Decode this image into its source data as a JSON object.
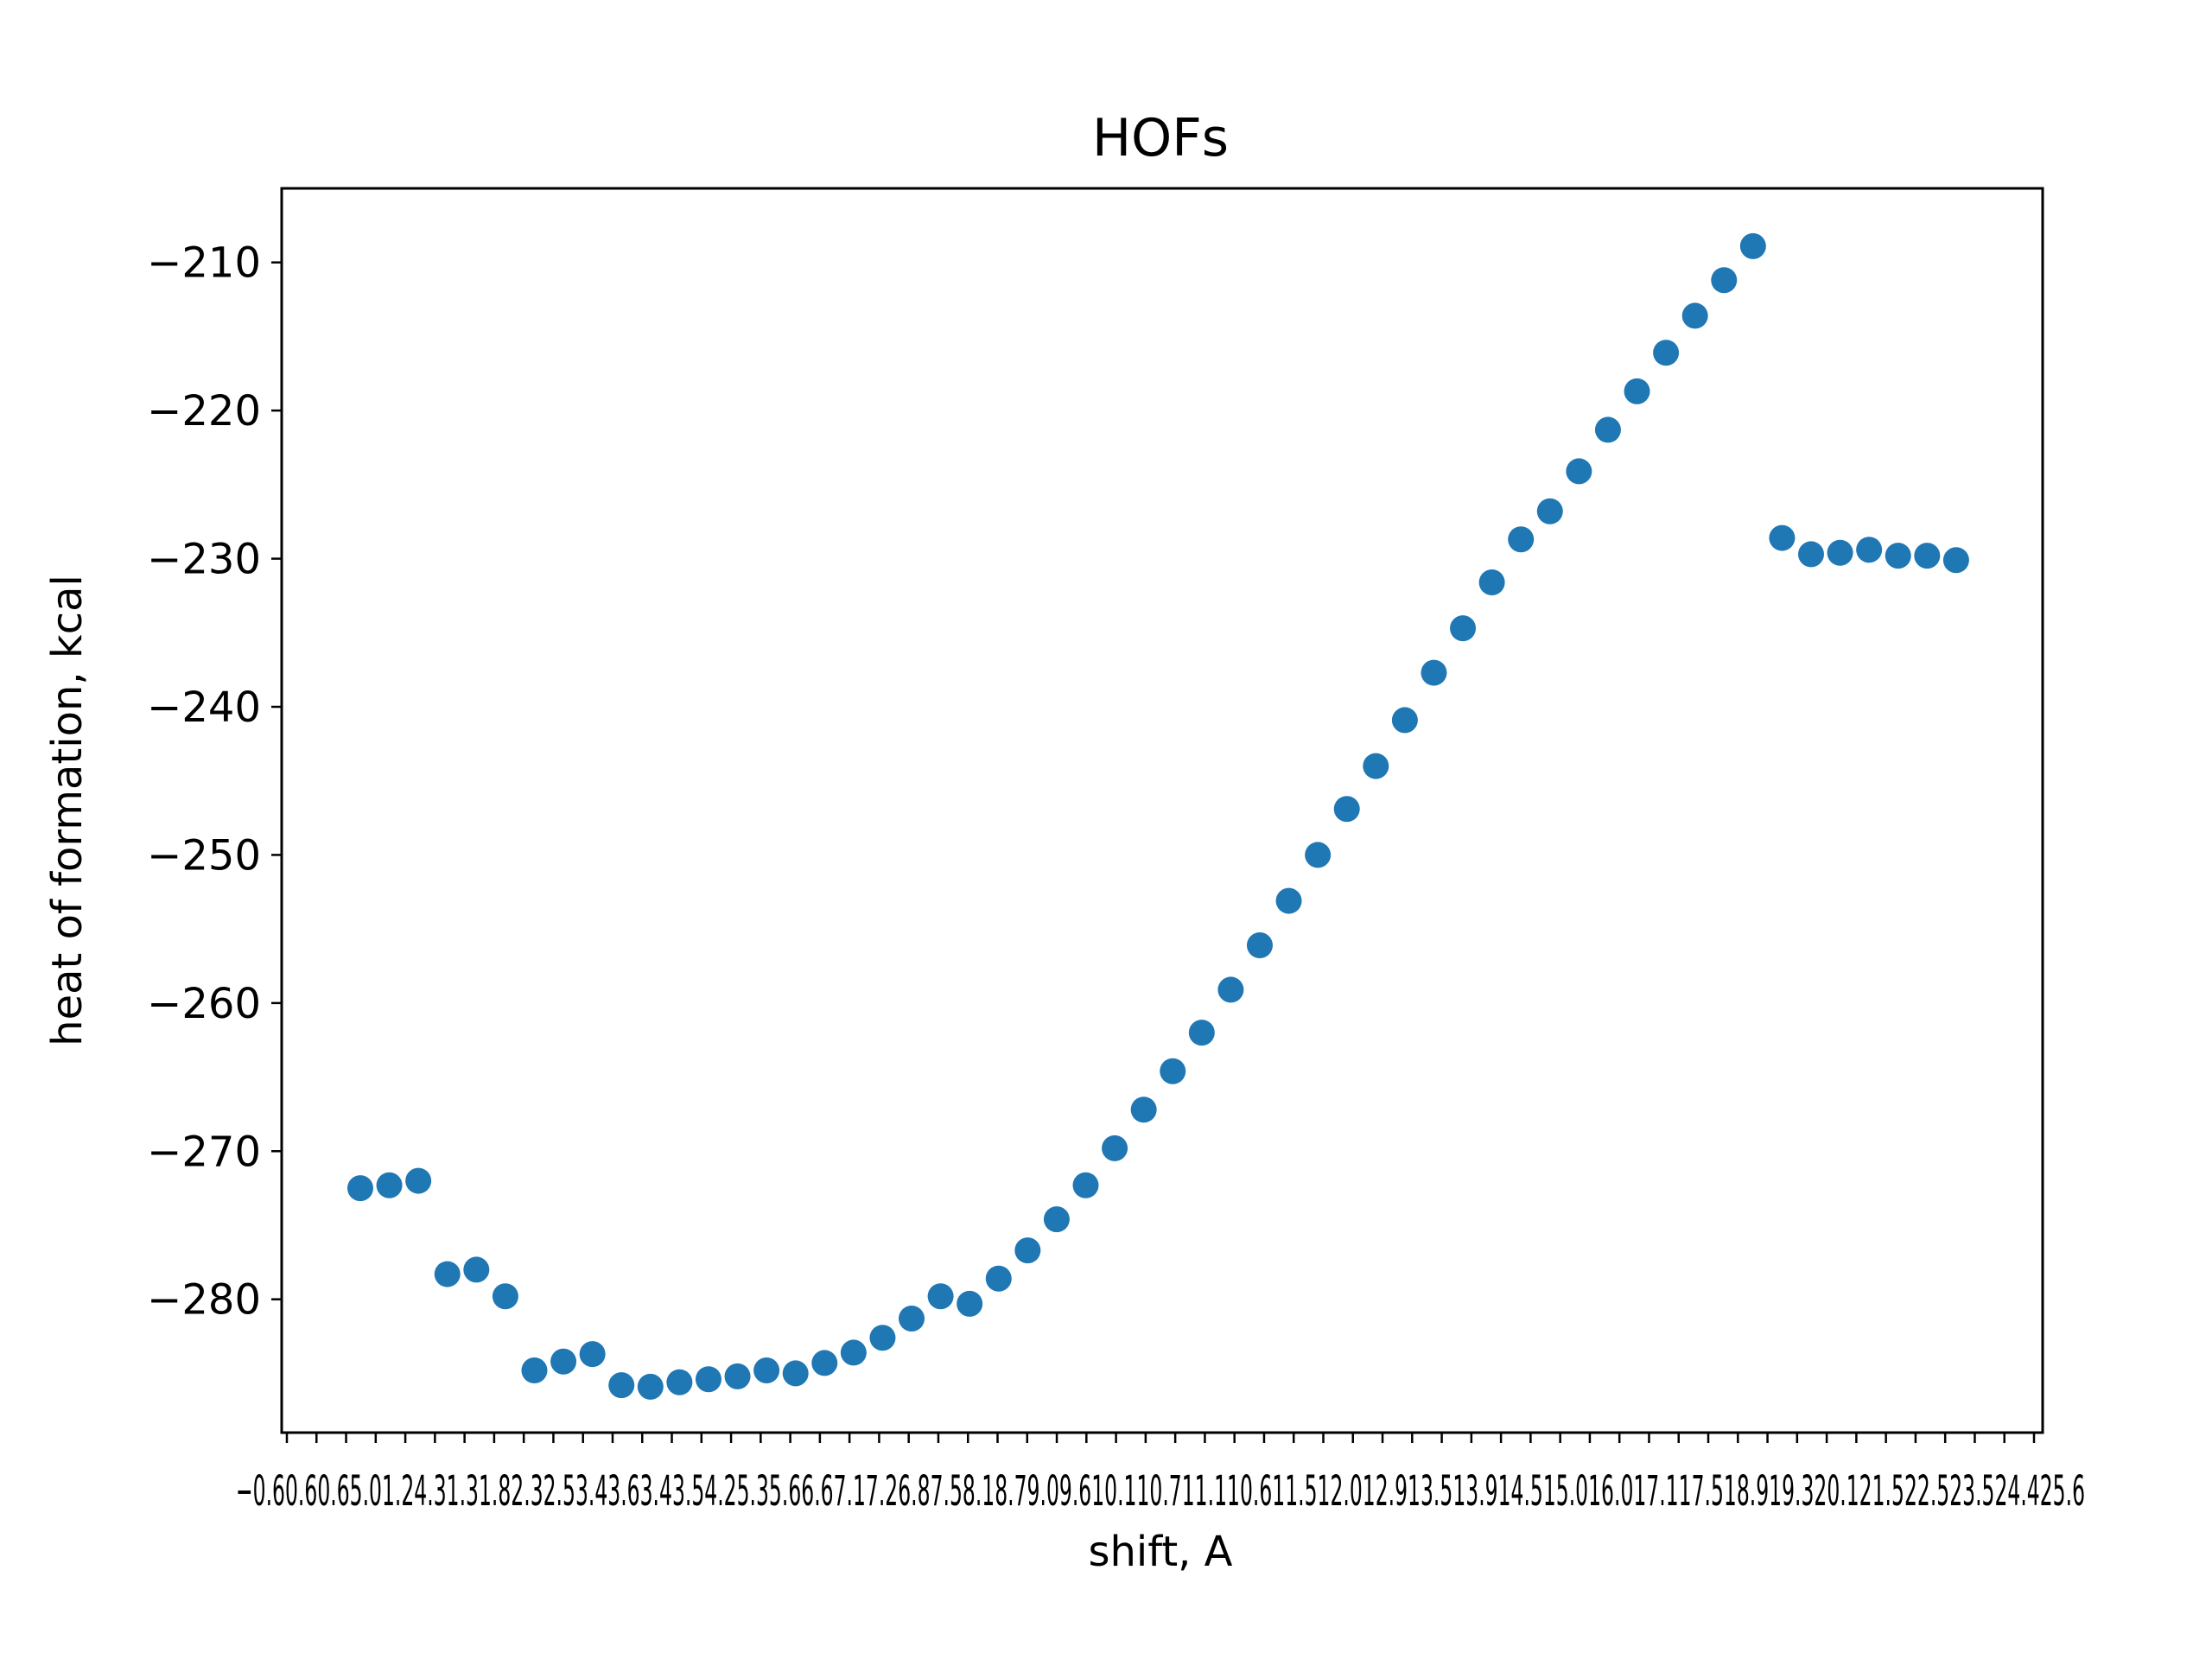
{
  "chart_data": {
    "type": "scatter",
    "title": "HOFs",
    "xlabel": "shift, A",
    "ylabel": "heat of formation, kcal",
    "ylim": [
      -289,
      -205
    ],
    "yticks": [
      -210,
      -220,
      -230,
      -240,
      -250,
      -260,
      -270,
      -280
    ],
    "yticklabels": [
      "−210",
      "−220",
      "−230",
      "−240",
      "−250",
      "−260",
      "−270",
      "−280"
    ],
    "xtick_count": 60,
    "xticks_overlapping_text": "−0.60.60.65.01.24.31.31.82.32.53.43.63.43.54.25.35.66.67.17.26.87.58.18.79.09.610.110.711.110.611.512.012.913.513.914.515.016.017.117.518.919.320.121.522.523.524.425.6",
    "grid": false,
    "legend": "none",
    "marker_color": "#1f77b4",
    "series": [
      {
        "values": [
          -272.5,
          -272.3,
          -272.0,
          -278.3,
          -278.0,
          -279.8,
          -284.8,
          -284.2,
          -283.7,
          -285.8,
          -285.9,
          -285.6,
          -285.4,
          -285.2,
          -284.8,
          -285.0,
          -284.3,
          -283.6,
          -282.6,
          -281.3,
          -279.8,
          -280.3,
          -278.6,
          -276.7,
          -274.6,
          -272.3,
          -269.8,
          -267.2,
          -264.6,
          -262.0,
          -259.1,
          -256.1,
          -253.1,
          -250.0,
          -246.9,
          -244.0,
          -240.9,
          -237.7,
          -234.7,
          -231.6,
          -228.7,
          -226.8,
          -224.1,
          -221.3,
          -218.7,
          -216.1,
          -213.6,
          -211.2,
          -208.9,
          -228.6,
          -229.7,
          -229.6,
          -229.4,
          -229.8,
          -229.8,
          -230.1
        ]
      }
    ]
  }
}
